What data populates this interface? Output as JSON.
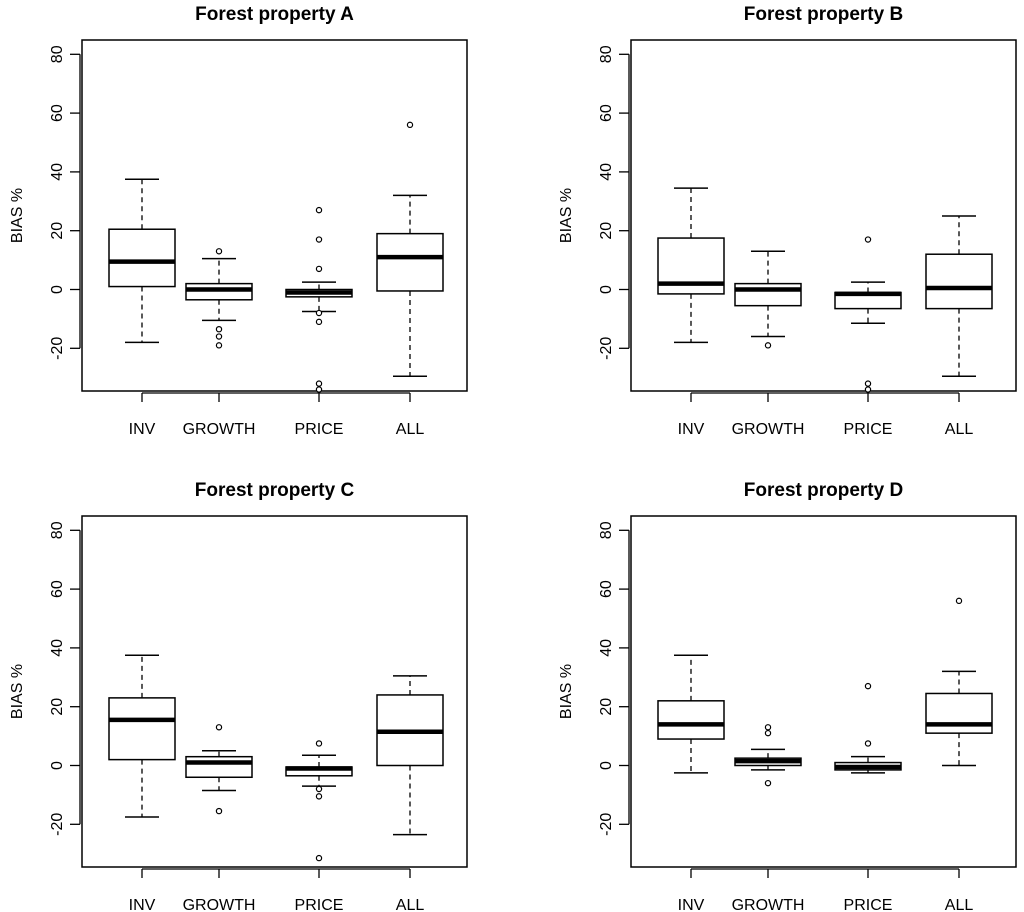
{
  "figure": {
    "ylabel": "BIAS %",
    "categories": [
      "INV",
      "GROWTH",
      "PRICE",
      "ALL"
    ],
    "yticks": [
      -20,
      0,
      20,
      40,
      60,
      80
    ]
  },
  "chart_data": [
    {
      "type": "boxplot",
      "title": "Forest property A",
      "xlabel": "",
      "ylabel": "BIAS %",
      "ylim": [
        -34,
        84
      ],
      "categories": [
        "INV",
        "GROWTH",
        "PRICE",
        "ALL"
      ],
      "boxes": [
        {
          "category": "INV",
          "whisker_low": -18,
          "q1": 1,
          "median": 9.5,
          "q3": 20.5,
          "whisker_high": 37.5,
          "outliers": []
        },
        {
          "category": "GROWTH",
          "whisker_low": -10.5,
          "q1": -3.5,
          "median": 0,
          "q3": 2,
          "whisker_high": 10.5,
          "outliers": [
            13,
            -13.5,
            -16,
            -19
          ]
        },
        {
          "category": "PRICE",
          "whisker_low": -7.5,
          "q1": -2.5,
          "median": -1,
          "q3": 0,
          "whisker_high": 2.5,
          "outliers": [
            27,
            17,
            7,
            -8,
            -11,
            -32,
            -34
          ]
        },
        {
          "category": "ALL",
          "whisker_low": -29.5,
          "q1": -0.5,
          "median": 11,
          "q3": 19,
          "whisker_high": 32,
          "outliers": [
            56
          ]
        }
      ]
    },
    {
      "type": "boxplot",
      "title": "Forest property B",
      "xlabel": "",
      "ylabel": "BIAS %",
      "ylim": [
        -34,
        84
      ],
      "categories": [
        "INV",
        "GROWTH",
        "PRICE",
        "ALL"
      ],
      "boxes": [
        {
          "category": "INV",
          "whisker_low": -18,
          "q1": -1.5,
          "median": 2,
          "q3": 17.5,
          "whisker_high": 34.5,
          "outliers": []
        },
        {
          "category": "GROWTH",
          "whisker_low": -16,
          "q1": -5.5,
          "median": 0,
          "q3": 2,
          "whisker_high": 13,
          "outliers": [
            -19
          ]
        },
        {
          "category": "PRICE",
          "whisker_low": -11.5,
          "q1": -6.5,
          "median": -1.5,
          "q3": -1,
          "whisker_high": 2.5,
          "outliers": [
            17,
            -32,
            -34
          ]
        },
        {
          "category": "ALL",
          "whisker_low": -29.5,
          "q1": -6.5,
          "median": 0.5,
          "q3": 12,
          "whisker_high": 25,
          "outliers": []
        }
      ]
    },
    {
      "type": "boxplot",
      "title": "Forest property C",
      "xlabel": "",
      "ylabel": "BIAS %",
      "ylim": [
        -34,
        84
      ],
      "categories": [
        "INV",
        "GROWTH",
        "PRICE",
        "ALL"
      ],
      "boxes": [
        {
          "category": "INV",
          "whisker_low": -17.5,
          "q1": 2,
          "median": 15.5,
          "q3": 23,
          "whisker_high": 37.5,
          "outliers": []
        },
        {
          "category": "GROWTH",
          "whisker_low": -8.5,
          "q1": -4,
          "median": 1,
          "q3": 3,
          "whisker_high": 5,
          "outliers": [
            13,
            -15.5
          ]
        },
        {
          "category": "PRICE",
          "whisker_low": -7,
          "q1": -3.5,
          "median": -1,
          "q3": -0.5,
          "whisker_high": 3.5,
          "outliers": [
            7.5,
            -8,
            -10.5,
            -31.5
          ]
        },
        {
          "category": "ALL",
          "whisker_low": -23.5,
          "q1": 0,
          "median": 11.5,
          "q3": 24,
          "whisker_high": 30.5,
          "outliers": []
        }
      ]
    },
    {
      "type": "boxplot",
      "title": "Forest property D",
      "xlabel": "",
      "ylabel": "BIAS %",
      "ylim": [
        -34,
        84
      ],
      "categories": [
        "INV",
        "GROWTH",
        "PRICE",
        "ALL"
      ],
      "boxes": [
        {
          "category": "INV",
          "whisker_low": -2.5,
          "q1": 9,
          "median": 14,
          "q3": 22,
          "whisker_high": 37.5,
          "outliers": []
        },
        {
          "category": "GROWTH",
          "whisker_low": -1.5,
          "q1": 0,
          "median": 1.5,
          "q3": 2.5,
          "whisker_high": 5.5,
          "outliers": [
            13,
            11,
            -6
          ]
        },
        {
          "category": "PRICE",
          "whisker_low": -2.5,
          "q1": -1.5,
          "median": -0.5,
          "q3": 1,
          "whisker_high": 3,
          "outliers": [
            27,
            7.5
          ]
        },
        {
          "category": "ALL",
          "whisker_low": 0,
          "q1": 11,
          "median": 14,
          "q3": 24.5,
          "whisker_high": 32,
          "outliers": [
            56
          ]
        }
      ]
    }
  ]
}
